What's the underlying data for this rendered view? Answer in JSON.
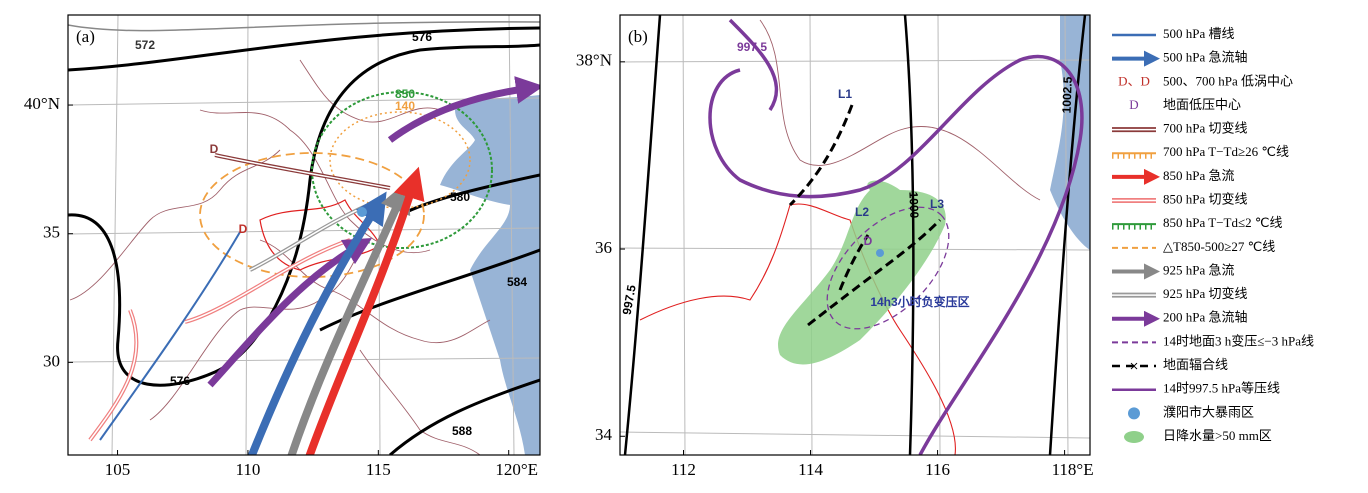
{
  "panels": [
    {
      "label": "(a)",
      "xlim": [
        103.1,
        121.2
      ],
      "ylim": [
        26.4,
        43.5
      ],
      "xticks": [
        105,
        110,
        115,
        {
          "value": 120,
          "label": "120°E"
        }
      ],
      "yticks": [
        {
          "value": 40,
          "label": "40°N"
        },
        35,
        30
      ],
      "contour_labels": [
        "572",
        "576",
        "580",
        "584",
        "588",
        "576",
        "850",
        "140"
      ],
      "symbols": [
        "D",
        "D"
      ]
    },
    {
      "label": "(b)",
      "xlim": [
        111,
        118.4
      ],
      "ylim": [
        33.8,
        38.5
      ],
      "xticks": [
        112,
        114,
        116,
        {
          "value": 118,
          "label": "118°E"
        }
      ],
      "yticks": [
        {
          "value": 38,
          "label": "38°N"
        },
        36,
        34
      ],
      "contour_labels": [
        "997.5",
        "997.5",
        "1000",
        "1002.5"
      ],
      "symbols": [
        "L1",
        "L2",
        "L3",
        "D"
      ],
      "annotation": "14h3小时负变压区"
    }
  ],
  "legend": {
    "items": [
      {
        "text": "500 hPa 槽线"
      },
      {
        "text": "500 hPa 急流轴"
      },
      {
        "symbol": "D、D",
        "text": "500、700 hPa 低涡中心"
      },
      {
        "symbol": "D",
        "text": "地面低压中心"
      },
      {
        "text": "700 hPa 切变线"
      },
      {
        "text": "700 hPa T−Td≥26 ℃线"
      },
      {
        "text": "850 hPa 急流"
      },
      {
        "text": "850 hPa 切变线"
      },
      {
        "text": "850 hPa T−Td≤2 ℃线"
      },
      {
        "text": "△T850-500≥27 ℃线"
      },
      {
        "text": "925 hPa 急流"
      },
      {
        "text": "925 hPa 切变线"
      },
      {
        "text": "200 hPa 急流轴"
      },
      {
        "text": "14时地面3 h变压≤−3 hPa线"
      },
      {
        "text": "地面辐合线"
      },
      {
        "text": "14时997.5 hPa等压线"
      },
      {
        "text": "濮阳市大暴雨区"
      },
      {
        "text": "日降水量>50 mm区"
      }
    ]
  }
}
